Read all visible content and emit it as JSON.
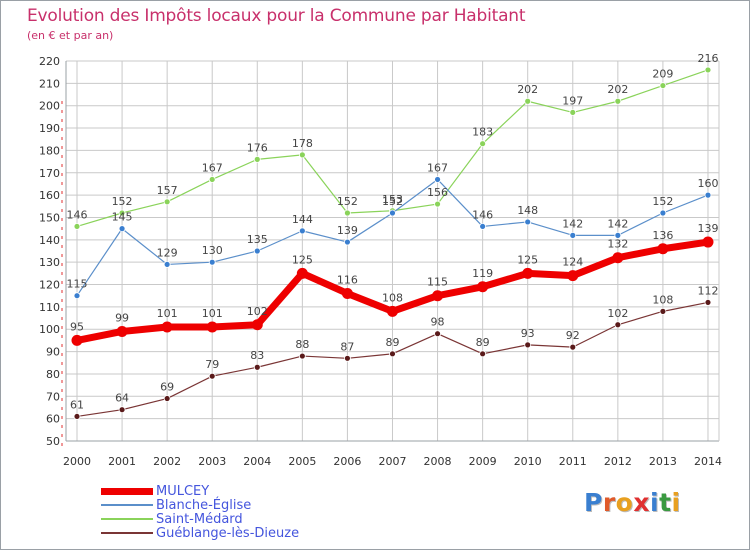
{
  "title": "Evolution des Impôts locaux pour la Commune par Habitant",
  "subtitle": "(en € et par an)",
  "colors": {
    "title": "#c8306b",
    "grid": "#c9c9c9",
    "axis_dash": "#e03030"
  },
  "chart_data": {
    "type": "line",
    "title": "Evolution des Impôts locaux pour la Commune par Habitant",
    "subtitle": "(en € et par an)",
    "xlabel": "",
    "ylabel": "",
    "ylim": [
      50,
      220
    ],
    "yticks": [
      "50",
      "60",
      "70",
      "80",
      "90",
      "100",
      "110",
      "120",
      "130",
      "140",
      "150",
      "160",
      "170",
      "180",
      "190",
      "200",
      "210",
      "220"
    ],
    "categories": [
      "2000",
      "2001",
      "2002",
      "2003",
      "2004",
      "2005",
      "2006",
      "2007",
      "2008",
      "2009",
      "2010",
      "2011",
      "2012",
      "2013",
      "2014"
    ],
    "grid": true,
    "legend_position": "bottom-left",
    "series": [
      {
        "name": "Saint-Médard",
        "color": "#8ad35a",
        "marker": "#8ad35a",
        "width": 1.2,
        "r": 3,
        "labelColor": "#444",
        "values": [
          146,
          152,
          157,
          167,
          176,
          178,
          152,
          153,
          156,
          183,
          202,
          197,
          202,
          209,
          216
        ],
        "labels": [
          "146",
          "152",
          "157",
          "167",
          "176",
          "178",
          "152",
          "153",
          "156",
          "183",
          "202",
          "197",
          "202",
          "209",
          "216"
        ]
      },
      {
        "name": "Blanche-Église",
        "color": "#5b8fca",
        "marker": "#3a7fd0",
        "width": 1.2,
        "r": 3,
        "labelColor": "#444",
        "values": [
          115,
          145,
          129,
          130,
          135,
          144,
          139,
          152,
          167,
          146,
          148,
          142,
          142,
          152,
          160
        ],
        "labels": [
          "115",
          "145",
          "129",
          "130",
          "135",
          "144",
          "139",
          "152",
          "167",
          "146",
          "148",
          "142",
          "142",
          "152",
          "160"
        ]
      },
      {
        "name": "Guéblange-lès-Dieuze",
        "color": "#7a3535",
        "marker": "#5a1a1a",
        "width": 1.2,
        "r": 3,
        "labelColor": "#444",
        "values": [
          61,
          64,
          69,
          79,
          83,
          88,
          87,
          89,
          98,
          89,
          93,
          92,
          102,
          108,
          112
        ],
        "labels": [
          "61",
          "64",
          "69",
          "79",
          "83",
          "88",
          "87",
          "89",
          "98",
          "89",
          "93",
          "92",
          "102",
          "108",
          "112"
        ]
      },
      {
        "name": "MULCEY",
        "color": "#ee0000",
        "marker": "#ee0000",
        "width": 7,
        "r": 5.5,
        "labelColor": "#444",
        "values": [
          95,
          99,
          101,
          101,
          102,
          125,
          116,
          108,
          115,
          119,
          125,
          124,
          132,
          136,
          139
        ],
        "labels": [
          "95",
          "99",
          "101",
          "101",
          "102",
          "125",
          "116",
          "108",
          "115",
          "119",
          "125",
          "124",
          "132",
          "136",
          "139"
        ]
      }
    ]
  },
  "legend": [
    {
      "name": "MULCEY",
      "color": "#ee0000",
      "textColor": "#4455dd",
      "thickness": 7
    },
    {
      "name": "Blanche-Église",
      "color": "#5b8fca",
      "textColor": "#4455dd",
      "thickness": 2
    },
    {
      "name": "Saint-Médard",
      "color": "#8ad35a",
      "textColor": "#4455dd",
      "thickness": 2
    },
    {
      "name": "Guéblange-lès-Dieuze",
      "color": "#7a3535",
      "textColor": "#4455dd",
      "thickness": 2
    }
  ],
  "logo": {
    "text": "Proxiti",
    "colors": [
      "#3a7fd0",
      "#e05a2a",
      "#e8a020",
      "#e03030",
      "#3a7fd0",
      "#3a9a40",
      "#e8a020"
    ]
  }
}
